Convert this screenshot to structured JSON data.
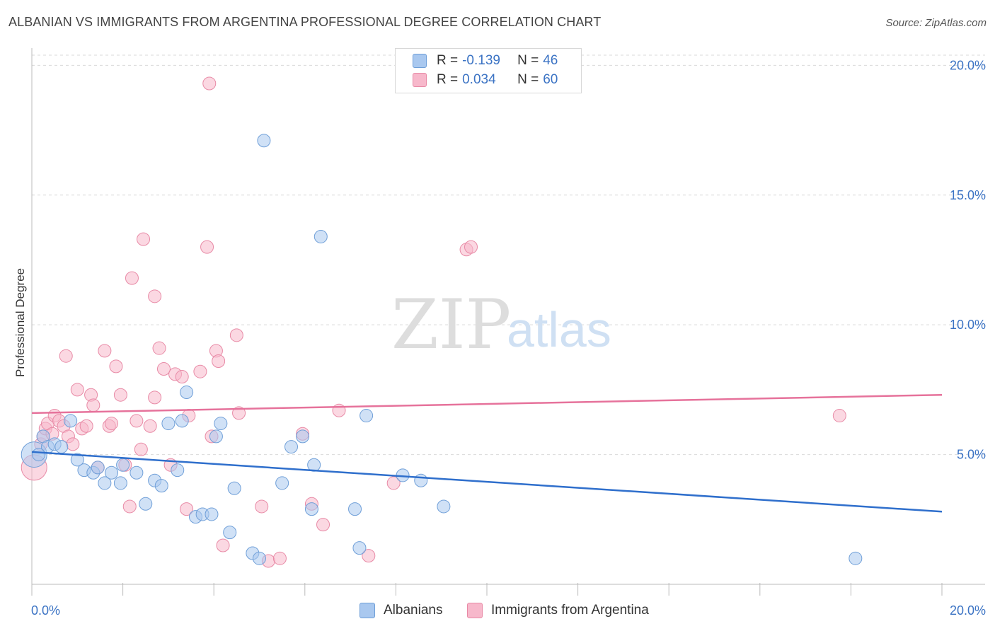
{
  "header": {
    "title": "ALBANIAN VS IMMIGRANTS FROM ARGENTINA PROFESSIONAL DEGREE CORRELATION CHART",
    "source": "Source: ZipAtlas.com"
  },
  "watermark": {
    "zip": "ZIP",
    "atlas": "atlas"
  },
  "legend": {
    "rows": [
      {
        "r_label": "R = ",
        "r_value": "-0.139",
        "n_label": "N = ",
        "n_value": "46",
        "color": "#a9c8ef",
        "border": "#6f9fd8"
      },
      {
        "r_label": "R = ",
        "r_value": "0.034",
        "n_label": "N = ",
        "n_value": "60",
        "color": "#f7b8cb",
        "border": "#e88aa6"
      }
    ]
  },
  "bottom_legend": {
    "albanians": "Albanians",
    "argentina": "Immigrants from Argentina"
  },
  "colors": {
    "blue_fill": "#a9c8ef",
    "blue_stroke": "#6f9fd8",
    "blue_line": "#2f6fcc",
    "pink_fill": "#f7b8cb",
    "pink_stroke": "#e88aa6",
    "pink_line": "#e6729b",
    "tick_text": "#3b73c4",
    "grid": "#d9d9d9"
  },
  "chart_data": {
    "type": "scatter",
    "title": "ALBANIAN VS IMMIGRANTS FROM ARGENTINA PROFESSIONAL DEGREE CORRELATION CHART",
    "xlabel": "",
    "ylabel": "Professional Degree",
    "xlim": [
      0,
      20
    ],
    "ylim": [
      0,
      20.5
    ],
    "x_tick_labels": [
      "0.0%",
      "20.0%"
    ],
    "y_tick_labels": [
      "5.0%",
      "10.0%",
      "15.0%",
      "20.0%"
    ],
    "y_ticks": [
      5,
      10,
      15,
      20
    ],
    "grid": "horizontal dashed",
    "legend_position": "top-center",
    "series": [
      {
        "name": "Albanians",
        "trend": {
          "x0": 0,
          "y0": 5.1,
          "x1": 20,
          "y1": 2.8
        },
        "points": [
          [
            0.05,
            5.0
          ],
          [
            0.25,
            5.7
          ],
          [
            0.35,
            5.3
          ],
          [
            0.5,
            5.4
          ],
          [
            0.65,
            5.3
          ],
          [
            0.85,
            6.3
          ],
          [
            1.0,
            4.8
          ],
          [
            1.15,
            4.4
          ],
          [
            1.35,
            4.3
          ],
          [
            1.45,
            4.5
          ],
          [
            1.6,
            3.9
          ],
          [
            1.75,
            4.3
          ],
          [
            1.95,
            3.9
          ],
          [
            2.0,
            4.6
          ],
          [
            2.3,
            4.3
          ],
          [
            2.5,
            3.1
          ],
          [
            2.7,
            4.0
          ],
          [
            2.85,
            3.8
          ],
          [
            3.0,
            6.2
          ],
          [
            3.2,
            4.4
          ],
          [
            3.3,
            6.3
          ],
          [
            3.4,
            7.4
          ],
          [
            3.6,
            2.6
          ],
          [
            3.75,
            2.7
          ],
          [
            3.95,
            2.7
          ],
          [
            4.05,
            5.7
          ],
          [
            4.15,
            6.2
          ],
          [
            4.35,
            2.0
          ],
          [
            4.45,
            3.7
          ],
          [
            4.85,
            1.2
          ],
          [
            5.0,
            1.0
          ],
          [
            5.1,
            17.1
          ],
          [
            5.5,
            3.9
          ],
          [
            5.7,
            5.3
          ],
          [
            5.95,
            5.7
          ],
          [
            6.15,
            2.9
          ],
          [
            6.2,
            4.6
          ],
          [
            6.35,
            13.4
          ],
          [
            7.1,
            2.9
          ],
          [
            7.2,
            1.4
          ],
          [
            7.35,
            6.5
          ],
          [
            8.15,
            4.2
          ],
          [
            8.55,
            4.0
          ],
          [
            9.05,
            3.0
          ],
          [
            18.1,
            1.0
          ],
          [
            0.15,
            5.0
          ]
        ],
        "sizes": [
          18,
          9,
          9,
          9,
          9,
          9,
          9,
          9,
          9,
          9,
          9,
          9,
          9,
          9,
          9,
          9,
          9,
          9,
          9,
          9,
          9,
          9,
          9,
          9,
          9,
          9,
          9,
          9,
          9,
          9,
          9,
          9,
          9,
          9,
          9,
          9,
          9,
          9,
          9,
          9,
          9,
          9,
          9,
          9,
          9,
          9
        ]
      },
      {
        "name": "Immigrants from Argentina",
        "trend": {
          "x0": 0,
          "y0": 6.6,
          "x1": 20,
          "y1": 7.3
        },
        "points": [
          [
            0.05,
            4.5
          ],
          [
            0.2,
            5.4
          ],
          [
            0.25,
            5.7
          ],
          [
            0.3,
            6.0
          ],
          [
            0.35,
            6.2
          ],
          [
            0.5,
            6.5
          ],
          [
            0.6,
            6.3
          ],
          [
            0.7,
            6.1
          ],
          [
            0.75,
            8.8
          ],
          [
            0.8,
            5.7
          ],
          [
            0.9,
            5.4
          ],
          [
            1.0,
            7.5
          ],
          [
            1.1,
            6.0
          ],
          [
            1.2,
            6.1
          ],
          [
            1.3,
            7.3
          ],
          [
            1.35,
            6.9
          ],
          [
            1.45,
            4.5
          ],
          [
            1.6,
            9.0
          ],
          [
            1.7,
            6.1
          ],
          [
            1.75,
            6.2
          ],
          [
            1.85,
            8.4
          ],
          [
            1.95,
            7.3
          ],
          [
            2.05,
            4.6
          ],
          [
            2.15,
            3.0
          ],
          [
            2.2,
            11.8
          ],
          [
            2.3,
            6.3
          ],
          [
            2.4,
            5.2
          ],
          [
            2.45,
            13.3
          ],
          [
            2.6,
            6.1
          ],
          [
            2.7,
            11.1
          ],
          [
            2.7,
            7.2
          ],
          [
            2.8,
            9.1
          ],
          [
            2.9,
            8.3
          ],
          [
            3.05,
            4.6
          ],
          [
            3.15,
            8.1
          ],
          [
            3.3,
            8.0
          ],
          [
            3.4,
            2.9
          ],
          [
            3.45,
            6.5
          ],
          [
            3.7,
            8.2
          ],
          [
            3.85,
            13.0
          ],
          [
            3.95,
            5.7
          ],
          [
            4.05,
            9.0
          ],
          [
            4.1,
            8.6
          ],
          [
            4.2,
            1.5
          ],
          [
            4.5,
            9.6
          ],
          [
            4.55,
            6.6
          ],
          [
            5.05,
            3.0
          ],
          [
            5.2,
            0.9
          ],
          [
            5.45,
            1.0
          ],
          [
            5.95,
            5.8
          ],
          [
            6.15,
            3.1
          ],
          [
            6.4,
            2.3
          ],
          [
            6.75,
            6.7
          ],
          [
            7.4,
            1.1
          ],
          [
            7.95,
            3.9
          ],
          [
            9.55,
            12.9
          ],
          [
            9.65,
            13.0
          ],
          [
            17.75,
            6.5
          ],
          [
            3.9,
            19.3
          ],
          [
            0.45,
            5.8
          ]
        ],
        "sizes": [
          18,
          9,
          9,
          9,
          9,
          9,
          9,
          9,
          9,
          9,
          9,
          9,
          9,
          9,
          9,
          9,
          9,
          9,
          9,
          9,
          9,
          9,
          9,
          9,
          9,
          9,
          9,
          9,
          9,
          9,
          9,
          9,
          9,
          9,
          9,
          9,
          9,
          9,
          9,
          9,
          9,
          9,
          9,
          9,
          9,
          9,
          9,
          9,
          9,
          9,
          9,
          9,
          9,
          9,
          9,
          9,
          9,
          9,
          9,
          9
        ]
      }
    ]
  }
}
